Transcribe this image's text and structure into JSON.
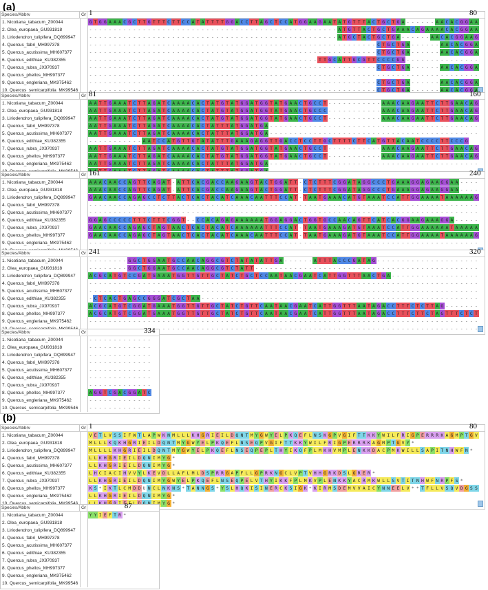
{
  "panel_a_label": "(a)",
  "panel_b_label": "(b)",
  "header_species": "Species/Abbrv",
  "header_gr": "Gr",
  "species": [
    "1. Nicotiana_tabacum_Z00044",
    "2. Olea_europaea_GU931818",
    "3. Liriodendron_tulipifera_DQ899947",
    "4. Quercus_fabri_MH997378",
    "5. Quercus_acutissima_MH607377",
    "6. Quercus_edithiae_KU382355",
    "7. Quercus_rubra_JX970937",
    "8. Quercus_phellos_MH997377",
    "9. Quercus_engleriana_MK975462",
    "10. Quercus_semicarpifolia_MK99546"
  ],
  "colors": {
    "A": "#3cb44b",
    "C": "#4f88e6",
    "G": "#a64fd6",
    "T": "#e8505b",
    "gap": "#ffffff",
    "aa_hydrophobic": "#f5ea5a",
    "aa_basic": "#d9a0f0",
    "aa_acidic": "#f0a0a0",
    "aa_polar": "#7fd6e8",
    "aa_G": "#f2b035",
    "aa_other": "#8ae06a"
  },
  "panel_a": [
    {
      "start": "1",
      "end": "80",
      "rows": [
        "GTGGAAACGCTTGTTTCTTCCATATTTTGGACCTTAGCTCCATGGAAGAATATGTTTACTGCTGA------AACACGGAAG",
        "---------------------------------------------------ATGTTACTGCTGAAACAGAAAACACGGAAG",
        "---------------------------------------------------ATGCTACTGCTGA------AACACGGAAG",
        "-----------------------------------------------------------CTGCTGA------AACACGGAAG",
        "-----------------------------------------------------------CTGCTGA------AACACGGAAG",
        "-----------------------------------------------TTGCATTGCGTTCCCCGG----------------",
        "-----------------------------------------------------------CTGCTGA------AACACGGAAG",
        "----------------------------------------------------------------------------------",
        "-----------------------------------------------------------CTGCTGA------AACACGGAAG",
        "-----------------------------------------------------------CTGCTGA------AACACGGAAG"
      ]
    },
    {
      "start": "81",
      "end": "160",
      "rows": [
        "AATTGAAATCTTAGATCAAAACACTATGTATGGATGGTATGAACTGCCT-----------AAACAAGAATTCTTGAACAGCG",
        "AATTGAAATCTTAGATCAAAACACTATGTATGGATGGTATGAACTGCCC-----------AAACAAGAATTCTTGAACAGCG",
        "AATTGAAATCTTAGATCAAAACACTATGTATGGATGGTATGAACTGCCT-----------AAACAAGAATTCTTGAACAGCG",
        "AATTGAAATCTTAGATCAAAACACTATTTATGGATGA---------------------------------------------",
        "AATTGAAATCTTAGATCAAAACACTATTTATGGATGA---------------------------------------------",
        "-----------AATCCATGTTGTATATTTGAAAGAGGTTGACCTCCTTGCTTTTCTTCATGTTACAATCCCCTTCCCG",
        "AATTGAAATCTTAGATCAAAACACTATGTATGGATGGTATGAACTGCCT-----------AAACAAGAATTCTTGAACAGCG",
        "AATTGAAATCTTAGATCAAAACACTATGTATGGATGGTATGAACTGCCT-----------AAACAAGAATTCTTGAACAGCG",
        "AATTGAAATCTTAGATCAAAACACTATTTATGGATGA---------------------------------------------",
        "AATTGAAATCTTAGATCAAAACACTATTTATGGATGA---------------------------------------------"
      ]
    },
    {
      "start": "161",
      "end": "240",
      "rows": [
        "AAACAACCAGTTCAGAT-ATTCACGACCAAGAAGTACTGGATT-CTCTTTCGGATAGGCCCTGAAAGGAGAAGGAA-----",
        "AAACAACCAGTTCAGAT-ATTCACGACCAAGAAGTACTGGATT-CTCTTTCGGATAGGCCCTGAAAGGAGAAGGAA-----",
        "GAACAACCAGAGCCTCTTACTCACTACATCAAACAATTTCCAT-TAATGAAACATGTAAATCCATTGGAAAATAAAAAAG",
        "----------------------------------------------------------------------------------",
        "----------------------------------------------------------------------------------",
        "GGAGCCCCCTTTCTTTCGGT--CCACAGAGAAAAAATGGAGGACTGGTGCCAACAGTTCATCACGGAAGAAAGGA------",
        "GAACAACCAGAGCTAGTAACTCACTACATCAAAAAATTTCCAT-TAATGAAAGATGTAAATCCATTGGAAAAAATAAAAAT",
        "GAACAACCAGAGCTAGTAACTCACTACATCAAACAATTTCCAT-TAATGAAAGATGTAAATCCATTGGAAAATAAAAAAG",
        "----------------------------------------------------------------------------------",
        "----------------------------------------------------------------------------------"
      ]
    },
    {
      "start": "241",
      "end": "320",
      "rows": [
        "--------GGCTGGAATGCCAACAGGCGTCTATATATTGA------ATTTACCCGATAG---------------------",
        "--------GGCTGGAATGCCAACAGGCGTCTATT------------------------------------------------",
        "ACGCATGTCCGATGAAATGGTTGTTGCTATCTGCTCCAATAACGAATCATTGGTTTAACTGA-------------------",
        "----------------------------------------------------------------------------------",
        "----------------------------------------------------------------------------------",
        "-CTCACTGAGCCGGGATCGCTAA-----------------------------------------------------------",
        "ACGCATGTCGGATGAAATGGTTGTTGCTATCTGTTCAATAACGAATCATTGGTTTAATAGACCTTTCTCTTAG--------",
        "ACGCATGTCGGATGAAATGGTTGTTGCTATCTGTTCAATAACGAATCATTGGTTTAATAGACCTTTCTTCTAGTTTCTCT",
        "----------------------------------------------------------------------------------",
        "----------------------------------------------------------------------------------"
      ]
    },
    {
      "start": "",
      "end": "334",
      "rows": [
        "--------------",
        "--------------",
        "--------------",
        "--------------",
        "--------------",
        "--------------",
        "--------------",
        "AGGTCGACGGATCT",
        "--------------",
        "--------------"
      ]
    }
  ],
  "panel_b": [
    {
      "start": "1",
      "end": "80",
      "rows": [
        "VETLVSSIFWTLAPWKNMLLLKHGRIEILDQNTMYGWYELPKQEFLNSKGPVGIFTTKKYWILFRIGPERRRKAGMPTGV",
        "MLLLKQKHGRIEILDQNTMYGWYELPKQEFLNSEQPVGIFTTKKYWILFRIGPERRRKAGMPTGVY*",
        "MLLLLKHGRIEILDQNTMYGWYELPKQEFLNSEQPEPLTHYIKQFPLMKHVMPLENKKDACPMKWILLSAPITNHWFN*",
        "LLKHGRIEILDQNIMYG*",
        "LLKHGRIEILDQNIMYG*",
        "LHCIACIHVVYLKEVDLLAFLMLDSPRRGAPFLLGPRKNGCLVPTVHHGRKDSLGRER*",
        "LLKHGRIEILDQNIMYGWYELPKQEFLNSEQPELVTHYIKKFPLMKVPLENKKYACRMKWLLSVTITNHWFNRPFS*",
        "KS*IKTLCMDDUNCLNKNS*TANNGS*YSLHQKISINERCKSIGK*KIRMSDEMVVAICYNNEELV**TFLLVSQVDGSS",
        "LLKHGRIEILDQNIMYG*",
        "LLKHGRIEILDQNIMYG*"
      ]
    },
    {
      "start": "",
      "end": "87",
      "rows": [
        "YYIEFTR*",
        "",
        "",
        "",
        "",
        "",
        "",
        "",
        "",
        ""
      ]
    }
  ]
}
